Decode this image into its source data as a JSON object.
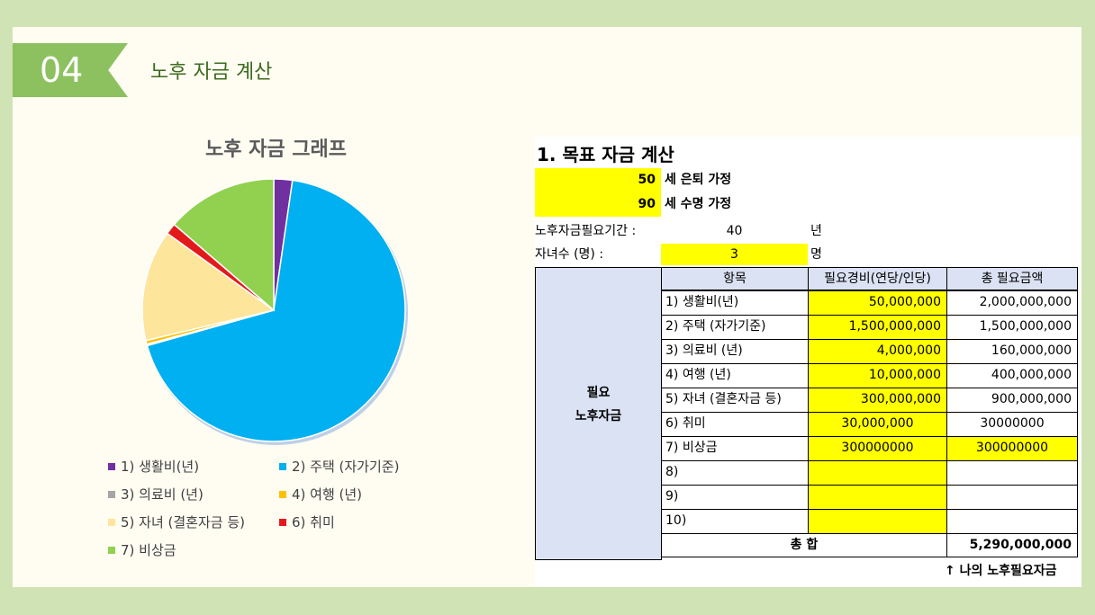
{
  "slide": {
    "number": "04",
    "title": "노후 자금 계산"
  },
  "chart_data": {
    "type": "pie",
    "title": "노후 자금 그래프",
    "labels": [
      "1) 생활비(년)",
      "2) 주택 (자가기준)",
      "3) 의료비 (년)",
      "4) 여행 (년)",
      "5) 자녀 (결혼자금 등)",
      "6) 취미",
      "7) 비상금"
    ],
    "values": [
      50000000,
      1500000000,
      4000000,
      10000000,
      300000000,
      30000000,
      300000000
    ],
    "colors": [
      "#7030a0",
      "#00b0f0",
      "#a5a5a5",
      "#ffc000",
      "#fde59c",
      "#e31a1c",
      "#92d050"
    ],
    "legend_position": "bottom"
  },
  "sheet": {
    "title": "1. 목표 자금 계산",
    "retire_age": "50",
    "retire_label": "세 은퇴 가정",
    "life_age": "90",
    "life_label": "세 수명 가정",
    "period_label": "노후자금필요기간 :",
    "period_value": "40",
    "period_unit": "년",
    "children_label": "자녀수 (명) :",
    "children_value": "3",
    "children_unit": "명",
    "header_item": "항목",
    "header_cost": "필요경비(연당/인당)",
    "header_total": "총 필요금액",
    "side_label_1": "필요",
    "side_label_2": "노후자금",
    "rows": [
      {
        "item": "1) 생활비(년)",
        "cost": "50,000,000",
        "total": "2,000,000,000"
      },
      {
        "item": "2) 주택 (자가기준)",
        "cost": "1,500,000,000",
        "total": "1,500,000,000"
      },
      {
        "item": "3) 의료비 (년)",
        "cost": "4,000,000",
        "total": "160,000,000"
      },
      {
        "item": "4) 여행 (년)",
        "cost": "10,000,000",
        "total": "400,000,000"
      },
      {
        "item": "5) 자녀 (결혼자금 등)",
        "cost": "300,000,000",
        "total": "900,000,000"
      },
      {
        "item": "6) 취미",
        "cost": "30,000,000",
        "total": "30000000"
      },
      {
        "item": "7) 비상금",
        "cost": "300000000",
        "total": "300000000"
      },
      {
        "item": "8)",
        "cost": "",
        "total": ""
      },
      {
        "item": "9)",
        "cost": "",
        "total": ""
      },
      {
        "item": "10)",
        "cost": "",
        "total": ""
      }
    ],
    "sum_label": "총 합",
    "sum_value": "5,290,000,000",
    "footnote": "↑ 나의 노후필요자금"
  }
}
